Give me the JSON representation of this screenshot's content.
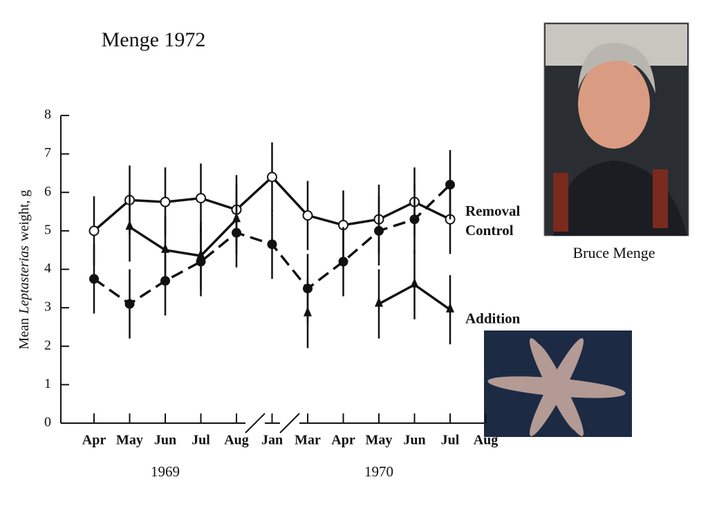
{
  "chart_data": {
    "type": "line",
    "title": "Menge 1972",
    "caption": "Bruce Menge",
    "y_label": [
      "Mean",
      "Leptasterias",
      "weight, g"
    ],
    "categories": [
      "Apr",
      "May",
      "Jun",
      "Jul",
      "Aug",
      "Jan",
      "Mar",
      "Apr",
      "May",
      "Jun",
      "Jul",
      "Aug"
    ],
    "years": [
      "1969",
      "1970"
    ],
    "ylim": [
      0,
      8
    ],
    "yticks": [
      0,
      1,
      2,
      3,
      4,
      5,
      6,
      7,
      8
    ],
    "series": [
      {
        "name": "Control",
        "color": "#111111",
        "marker": "open-circle",
        "dash": "none",
        "values": [
          5.0,
          5.8,
          5.75,
          5.85,
          5.55,
          6.4,
          5.4,
          5.15,
          5.3,
          5.75,
          5.3,
          null
        ],
        "errors": [
          0.9,
          0.9,
          0.9,
          0.9,
          0.9,
          0.9,
          0.9,
          0.9,
          0.9,
          0.9,
          0.9,
          null
        ]
      },
      {
        "name": "Removal",
        "color": "#111111",
        "marker": "filled-circle",
        "dash": "18 9",
        "values": [
          3.75,
          3.1,
          3.7,
          4.2,
          4.95,
          4.65,
          3.5,
          4.2,
          5.0,
          5.3,
          6.2,
          null
        ],
        "errors": [
          0.9,
          0.9,
          0.9,
          0.9,
          0.9,
          0.9,
          0.9,
          0.9,
          0.9,
          0.9,
          0.9,
          null
        ]
      },
      {
        "name": "Addition",
        "color": "#111111",
        "marker": "triangle",
        "dash": "none",
        "values": [
          null,
          5.1,
          4.5,
          4.35,
          5.3,
          null,
          2.85,
          null,
          3.1,
          3.6,
          2.95,
          null
        ],
        "errors": [
          null,
          0.9,
          0.9,
          0.9,
          0.9,
          null,
          0.9,
          null,
          0.9,
          0.9,
          0.9,
          null
        ]
      }
    ]
  }
}
